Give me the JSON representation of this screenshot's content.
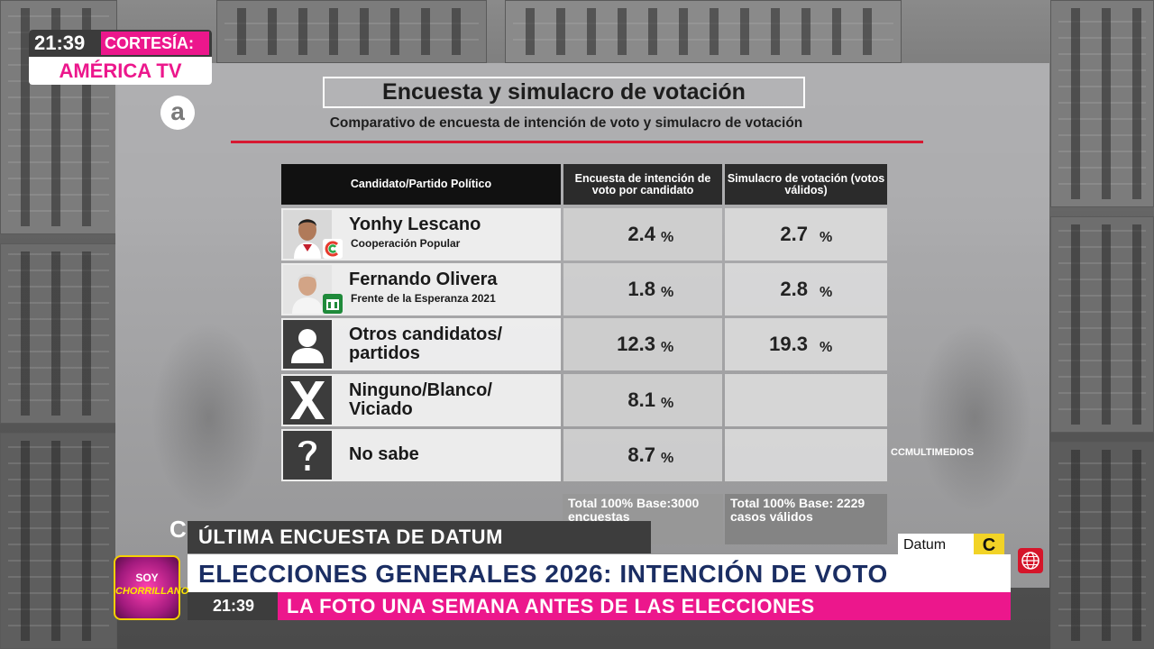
{
  "overlay": {
    "clock_time": "21:39",
    "cortesia_label": "CORTESÍA:",
    "cortesia_source": "AMÉRICA TV",
    "channel_logo_letter": "a",
    "show_logo_line1": "SOY",
    "show_logo_line2": "CHORRILLANO"
  },
  "panel": {
    "title": "Encuesta  y simulacro de votación",
    "subtitle": "Comparativo de encuesta de intención de voto y simulacro de votación",
    "accent_color": "#d61931",
    "headers": {
      "candidate": "Candidato/Partido Político",
      "survey": "Encuesta de intención de voto por candidato",
      "simulation": "Simulacro de votación (votos válidos)"
    },
    "rows": [
      {
        "name": "Yonhy Lescano",
        "party": "Cooperación Popular",
        "icon": "candidate-photo",
        "survey": "2.4",
        "simulation": "2.7"
      },
      {
        "name": "Fernando Olivera",
        "party": "Frente de la Esperanza 2021",
        "icon": "candidate-photo",
        "survey": "1.8",
        "simulation": "2.8"
      },
      {
        "name": "Otros candidatos/ partidos",
        "party": "",
        "icon": "person-icon",
        "survey": "12.3",
        "simulation": "19.3"
      },
      {
        "name": "Ninguno/Blanco/ Viciado",
        "party": "",
        "icon": "x-icon",
        "survey": "8.1",
        "simulation": ""
      },
      {
        "name": "No sabe",
        "party": "",
        "icon": "question-icon",
        "survey": "8.7",
        "simulation": ""
      }
    ],
    "percent_sign": "%",
    "totals": {
      "survey": "Total 100% Base:3000 encuestas",
      "simulation": "Total 100% Base: 2229 casos válidos"
    },
    "credit": "CCMULTIMEDIOS",
    "source_logo": "Datum",
    "source_logo2": "C"
  },
  "lower_third": {
    "partial_glyph": "C",
    "kicker": "ÚLTIMA ENCUESTA DE DATUM",
    "headline": "ELECCIONES GENERALES 2026: INTENCIÓN DE VOTO",
    "time": "21:39",
    "subline": "LA FOTO UNA SEMANA ANTES DE LAS ELECCIONES"
  }
}
